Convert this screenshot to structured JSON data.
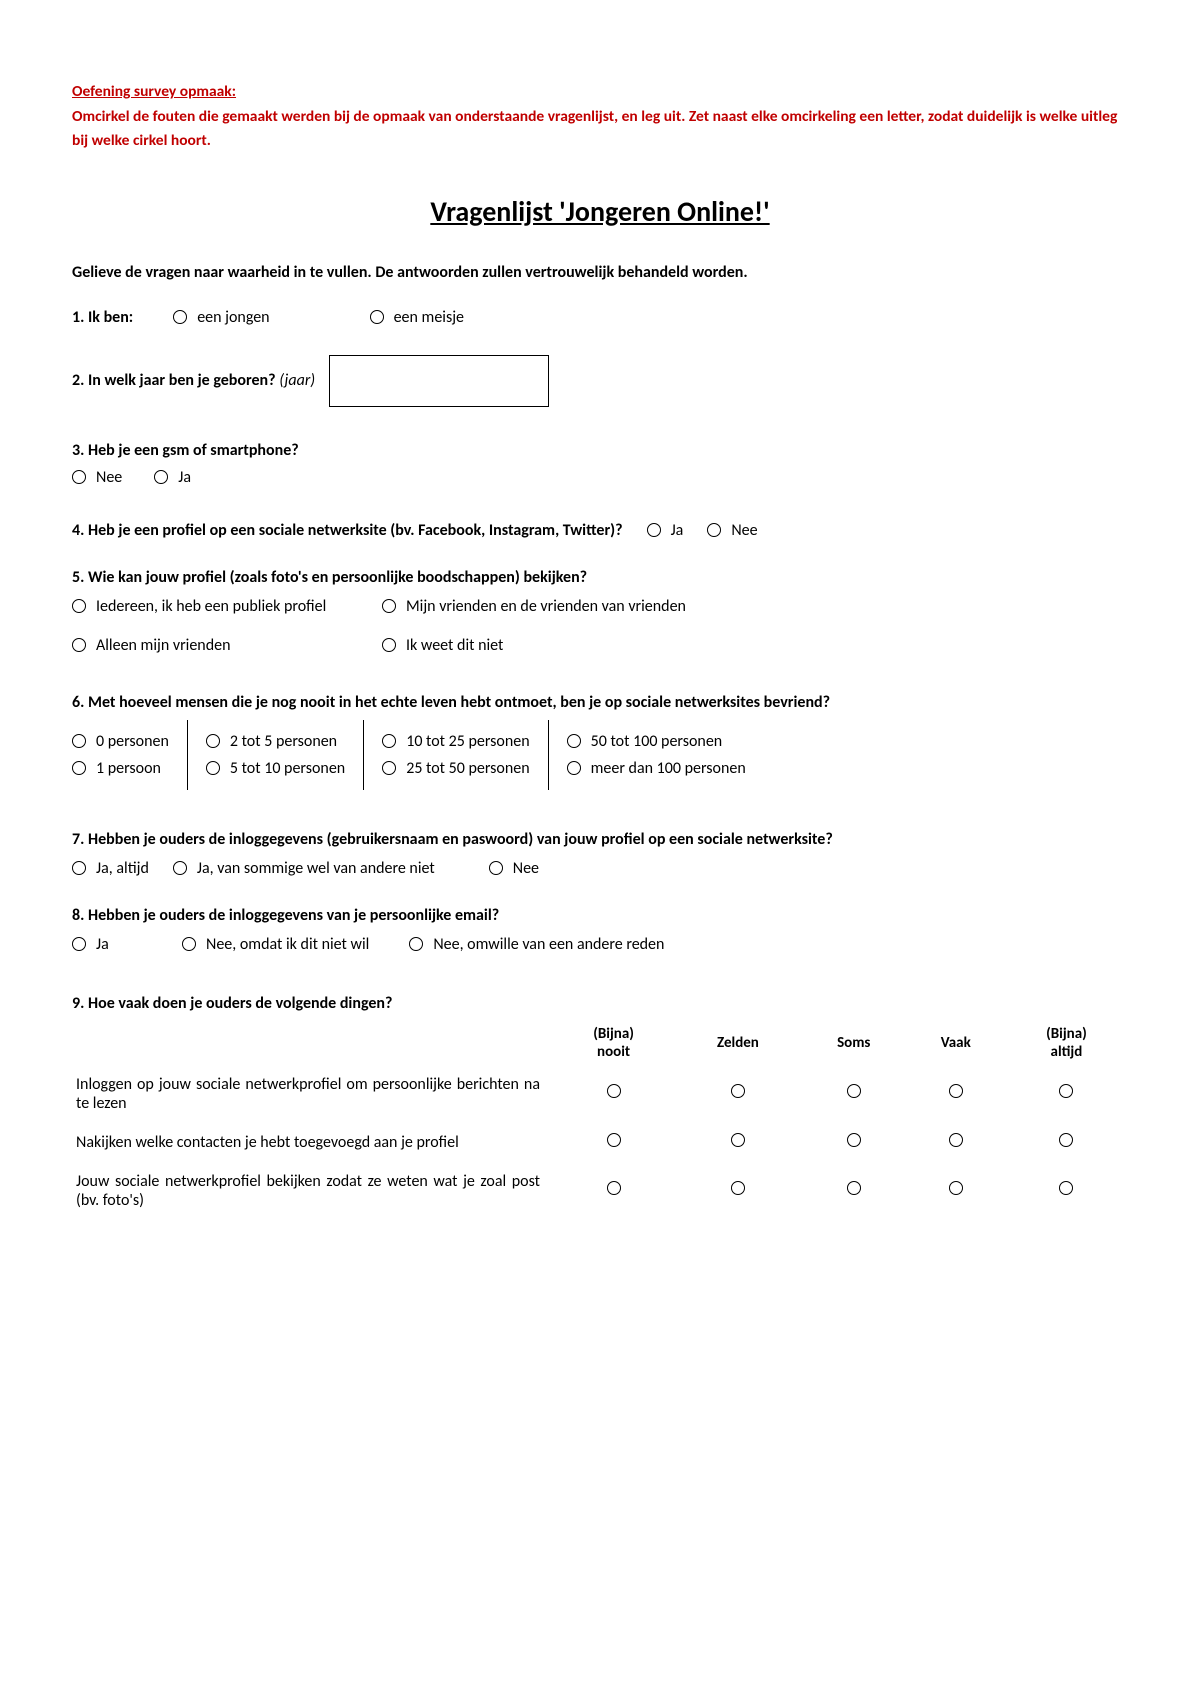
{
  "colors": {
    "red": "#c00000",
    "black": "#000000",
    "bg": "#ffffff"
  },
  "exercise": {
    "title": "Oefening survey opmaak:",
    "body": "Omcirkel de fouten die gemaakt werden bij de opmaak van onderstaande vragenlijst, en leg uit. Zet naast elke omcirkeling een letter, zodat duidelijk is welke uitleg bij welke cirkel hoort."
  },
  "survey_title": "Vragenlijst 'Jongeren Online!'",
  "intro": "Gelieve de vragen naar waarheid in te vullen. De antwoorden zullen vertrouwelijk behandeld worden.",
  "q1": {
    "label": "1. Ik ben:",
    "opts": [
      "een jongen",
      "een meisje"
    ]
  },
  "q2": {
    "label": "2. In welk jaar ben je geboren?",
    "hint": "(jaar)"
  },
  "q3": {
    "label": "3. Heb je een gsm of smartphone?",
    "opts": [
      "Nee",
      "Ja"
    ]
  },
  "q4": {
    "label": "4. Heb je een profiel op een sociale netwerksite (bv. Facebook, Instagram, Twitter)?",
    "opts": [
      "Ja",
      "Nee"
    ]
  },
  "q5": {
    "label": "5. Wie kan jouw profiel (zoals foto's en persoonlijke boodschappen) bekijken?",
    "opts": [
      "Iedereen, ik heb een publiek profiel",
      "Mijn vrienden en de vrienden van vrienden",
      "Alleen mijn vrienden",
      "Ik weet dit niet"
    ]
  },
  "q6": {
    "label": "6. Met hoeveel mensen die je nog nooit in het echte leven hebt ontmoet, ben je op sociale netwerksites bevriend?",
    "cols": [
      [
        "0 personen",
        "1 persoon"
      ],
      [
        "2 tot 5 personen",
        "5 tot 10 personen"
      ],
      [
        "10 tot 25 personen",
        "25 tot 50 personen"
      ],
      [
        "50 tot 100 personen",
        "meer dan 100 personen"
      ]
    ]
  },
  "q7": {
    "label": "7. Hebben je ouders de inloggegevens (gebruikersnaam en paswoord) van jouw profiel op een sociale netwerksite?",
    "opts": [
      "Ja, altijd",
      "Ja, van sommige wel van andere niet",
      "Nee"
    ]
  },
  "q8": {
    "label": "8. Hebben je ouders de inloggegevens van je persoonlijke email?",
    "opts": [
      "Ja",
      "Nee, omdat ik dit niet wil",
      "Nee, omwille van een andere reden"
    ]
  },
  "q9": {
    "label": "9. Hoe vaak doen je ouders de volgende dingen?",
    "headers": [
      "(Bijna) nooit",
      "Zelden",
      "Soms",
      "Vaak",
      "(Bijna) altijd"
    ],
    "rows": [
      "Inloggen op jouw sociale netwerkprofiel om persoonlijke berichten na te lezen",
      "Nakijken welke contacten je hebt toegevoegd aan je profiel",
      "Jouw sociale netwerkprofiel bekijken zodat ze weten wat je zoal post (bv. foto's)"
    ]
  }
}
